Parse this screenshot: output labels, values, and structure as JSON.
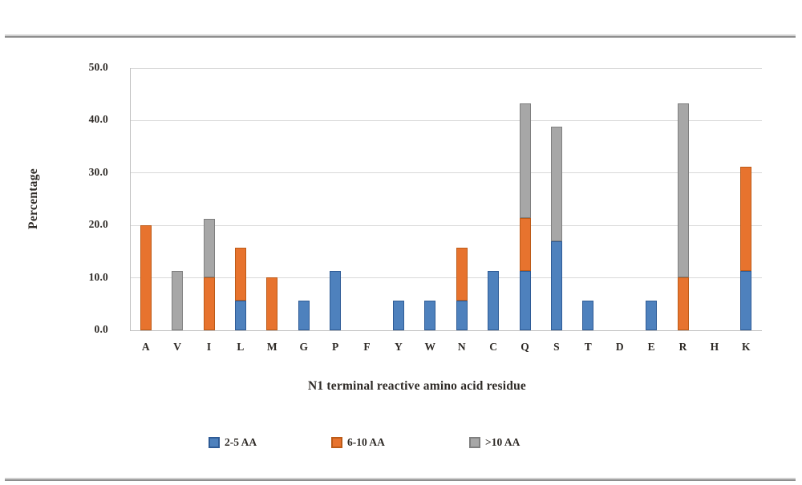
{
  "chart_data": {
    "type": "bar",
    "stacked": true,
    "title": "",
    "xlabel": "N1 terminal reactive amino acid residue",
    "ylabel": "Percentage",
    "ylim": [
      0,
      50
    ],
    "ytick_step": 10,
    "ytick_labels": [
      "0.0",
      "10.0",
      "20.0",
      "30.0",
      "40.0",
      "50.0"
    ],
    "grid": true,
    "legend_position": "bottom",
    "categories": [
      "A",
      "V",
      "I",
      "L",
      "M",
      "G",
      "P",
      "F",
      "Y",
      "W",
      "N",
      "C",
      "Q",
      "S",
      "T",
      "D",
      "E",
      "R",
      "H",
      "K"
    ],
    "series": [
      {
        "name": "2-5 AA",
        "color": "#4E81BD",
        "border_color": "#2E5B96",
        "values": [
          0,
          0,
          0,
          5.7,
          0,
          5.7,
          11.3,
          0,
          5.7,
          5.7,
          5.7,
          11.3,
          11.3,
          17.0,
          5.7,
          0,
          5.7,
          0,
          0,
          11.3
        ]
      },
      {
        "name": "6-10 AA",
        "color": "#E7732E",
        "border_color": "#BC5A17",
        "values": [
          20.1,
          0,
          10.1,
          10.1,
          10.1,
          0,
          0,
          0,
          0,
          0,
          10.1,
          0,
          10.1,
          0,
          0,
          0,
          0,
          10.1,
          0,
          19.9
        ]
      },
      {
        "name": ">10 AA",
        "color": "#A7A7A7",
        "border_color": "#7F7F7F",
        "values": [
          0,
          11.3,
          11.2,
          0,
          0,
          0,
          0,
          0,
          0,
          0,
          0,
          0,
          21.8,
          21.8,
          0,
          0,
          0,
          33.1,
          0,
          0
        ]
      }
    ]
  },
  "colors": {
    "gridline": "#d9d9d9",
    "axis": "#bfbfbf",
    "text": "#2e2a26"
  }
}
